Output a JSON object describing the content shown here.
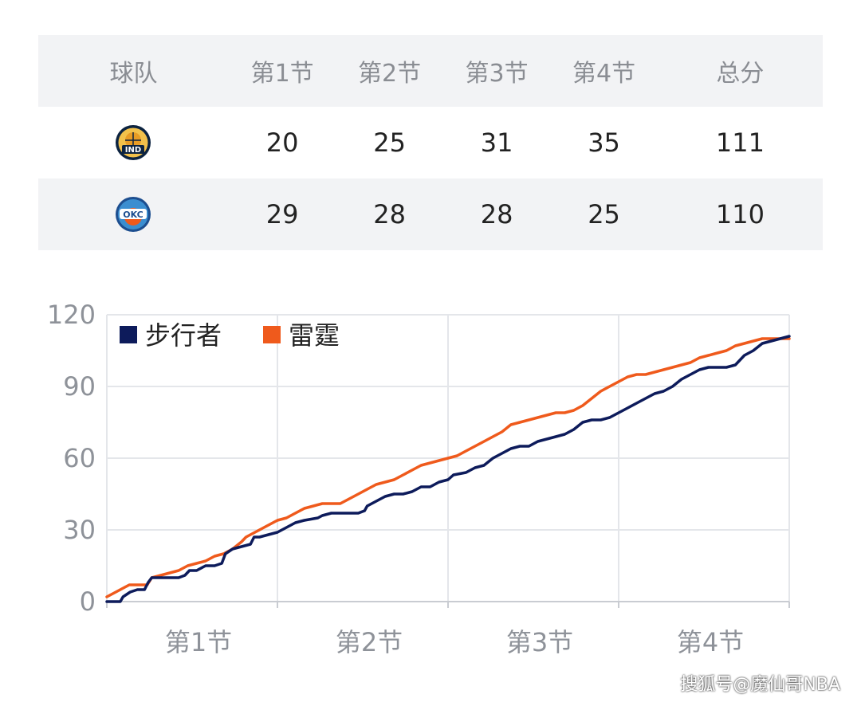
{
  "table": {
    "headers": [
      "球队",
      "第1节",
      "第2节",
      "第3节",
      "第4节",
      "总分"
    ],
    "rows": [
      {
        "team": "步行者",
        "logo_text": "IND",
        "scores": [
          "20",
          "25",
          "31",
          "35"
        ],
        "total": "111"
      },
      {
        "team": "雷霆",
        "logo_text": "OKC",
        "scores": [
          "29",
          "28",
          "28",
          "25"
        ],
        "total": "110"
      }
    ]
  },
  "chart_data": {
    "type": "line",
    "categories": [
      "第1节",
      "第2节",
      "第3节",
      "第4节"
    ],
    "ylim": [
      0,
      120
    ],
    "yticks": [
      0,
      30,
      60,
      90,
      120
    ],
    "x_unit": "game minutes (4 quarters x 12)",
    "series": [
      {
        "name": "步行者",
        "color": "#0d1b5b",
        "points": [
          [
            0,
            0
          ],
          [
            1.5,
            0
          ],
          [
            1.8,
            2
          ],
          [
            2.6,
            4
          ],
          [
            3.4,
            5
          ],
          [
            4.2,
            5
          ],
          [
            4.6,
            8
          ],
          [
            5,
            10
          ],
          [
            6,
            10
          ],
          [
            7,
            10
          ],
          [
            8,
            10
          ],
          [
            8.7,
            11
          ],
          [
            9.2,
            13
          ],
          [
            10,
            13
          ],
          [
            11,
            15
          ],
          [
            12,
            15
          ],
          [
            12.8,
            16
          ],
          [
            13.2,
            20
          ],
          [
            14,
            22
          ],
          [
            15,
            23
          ],
          [
            16,
            24
          ],
          [
            16.4,
            27
          ],
          [
            17,
            27
          ],
          [
            18,
            28
          ],
          [
            19,
            29
          ],
          [
            20,
            31
          ],
          [
            21,
            33
          ],
          [
            22,
            34
          ],
          [
            23.5,
            35
          ],
          [
            24,
            36
          ],
          [
            25,
            37
          ],
          [
            26,
            37
          ],
          [
            27,
            37
          ],
          [
            28,
            37
          ],
          [
            28.7,
            38
          ],
          [
            29,
            40
          ],
          [
            30,
            42
          ],
          [
            31,
            44
          ],
          [
            32,
            45
          ],
          [
            33,
            45
          ],
          [
            34,
            46
          ],
          [
            35,
            48
          ],
          [
            36,
            48
          ],
          [
            37,
            50
          ],
          [
            38,
            51
          ],
          [
            38.6,
            53
          ],
          [
            40,
            54
          ],
          [
            41,
            56
          ],
          [
            42,
            57
          ],
          [
            43,
            60
          ],
          [
            44,
            62
          ],
          [
            45,
            64
          ],
          [
            46,
            65
          ],
          [
            47,
            65
          ],
          [
            48,
            67
          ],
          [
            49,
            68
          ],
          [
            50,
            69
          ],
          [
            51,
            70
          ],
          [
            52,
            72
          ],
          [
            53,
            75
          ],
          [
            54,
            76
          ],
          [
            55,
            76
          ],
          [
            56,
            77
          ],
          [
            57,
            79
          ],
          [
            58,
            81
          ],
          [
            59,
            83
          ],
          [
            60,
            85
          ],
          [
            61,
            87
          ],
          [
            62,
            88
          ],
          [
            63,
            90
          ],
          [
            64,
            93
          ],
          [
            65,
            95
          ],
          [
            66,
            97
          ],
          [
            67,
            98
          ],
          [
            68,
            98
          ],
          [
            69,
            98
          ],
          [
            70,
            99
          ],
          [
            71,
            103
          ],
          [
            72,
            105
          ],
          [
            73,
            108
          ],
          [
            74,
            109
          ],
          [
            75,
            110
          ],
          [
            76,
            111
          ]
        ]
      },
      {
        "name": "雷霆",
        "color": "#ef5a1c",
        "points": [
          [
            0,
            2
          ],
          [
            1,
            4
          ],
          [
            2,
            6
          ],
          [
            2.5,
            7
          ],
          [
            3.5,
            7
          ],
          [
            4.5,
            7
          ],
          [
            5,
            10
          ],
          [
            6,
            11
          ],
          [
            7,
            12
          ],
          [
            8,
            13
          ],
          [
            9,
            15
          ],
          [
            10,
            16
          ],
          [
            11,
            17
          ],
          [
            12,
            19
          ],
          [
            13,
            20
          ],
          [
            14,
            22
          ],
          [
            15,
            25
          ],
          [
            15.5,
            27
          ],
          [
            16,
            28
          ],
          [
            17,
            30
          ],
          [
            18,
            32
          ],
          [
            19,
            34
          ],
          [
            20,
            35
          ],
          [
            21,
            37
          ],
          [
            22,
            39
          ],
          [
            23,
            40
          ],
          [
            24,
            41
          ],
          [
            25,
            41
          ],
          [
            26,
            41
          ],
          [
            27,
            43
          ],
          [
            28,
            45
          ],
          [
            29,
            47
          ],
          [
            30,
            49
          ],
          [
            31,
            50
          ],
          [
            32,
            51
          ],
          [
            33,
            53
          ],
          [
            34,
            55
          ],
          [
            35,
            57
          ],
          [
            36,
            58
          ],
          [
            37,
            59
          ],
          [
            38,
            60
          ],
          [
            39,
            61
          ],
          [
            40,
            63
          ],
          [
            41,
            65
          ],
          [
            42,
            67
          ],
          [
            43,
            69
          ],
          [
            44,
            71
          ],
          [
            45,
            74
          ],
          [
            46,
            75
          ],
          [
            47,
            76
          ],
          [
            48,
            77
          ],
          [
            49,
            78
          ],
          [
            50,
            79
          ],
          [
            51,
            79
          ],
          [
            52,
            80
          ],
          [
            53,
            82
          ],
          [
            54,
            85
          ],
          [
            55,
            88
          ],
          [
            56,
            90
          ],
          [
            57,
            92
          ],
          [
            58,
            94
          ],
          [
            59,
            95
          ],
          [
            60,
            95
          ],
          [
            61,
            96
          ],
          [
            62,
            97
          ],
          [
            63,
            98
          ],
          [
            64,
            99
          ],
          [
            65,
            100
          ],
          [
            66,
            102
          ],
          [
            67,
            103
          ],
          [
            68,
            104
          ],
          [
            69,
            105
          ],
          [
            70,
            107
          ],
          [
            71,
            108
          ],
          [
            72,
            109
          ],
          [
            73,
            110
          ],
          [
            74,
            110
          ],
          [
            75,
            110
          ],
          [
            76,
            110
          ]
        ]
      }
    ],
    "legend": "top-left",
    "grid": true
  },
  "watermark": "搜狐号@魔仙哥NBA"
}
